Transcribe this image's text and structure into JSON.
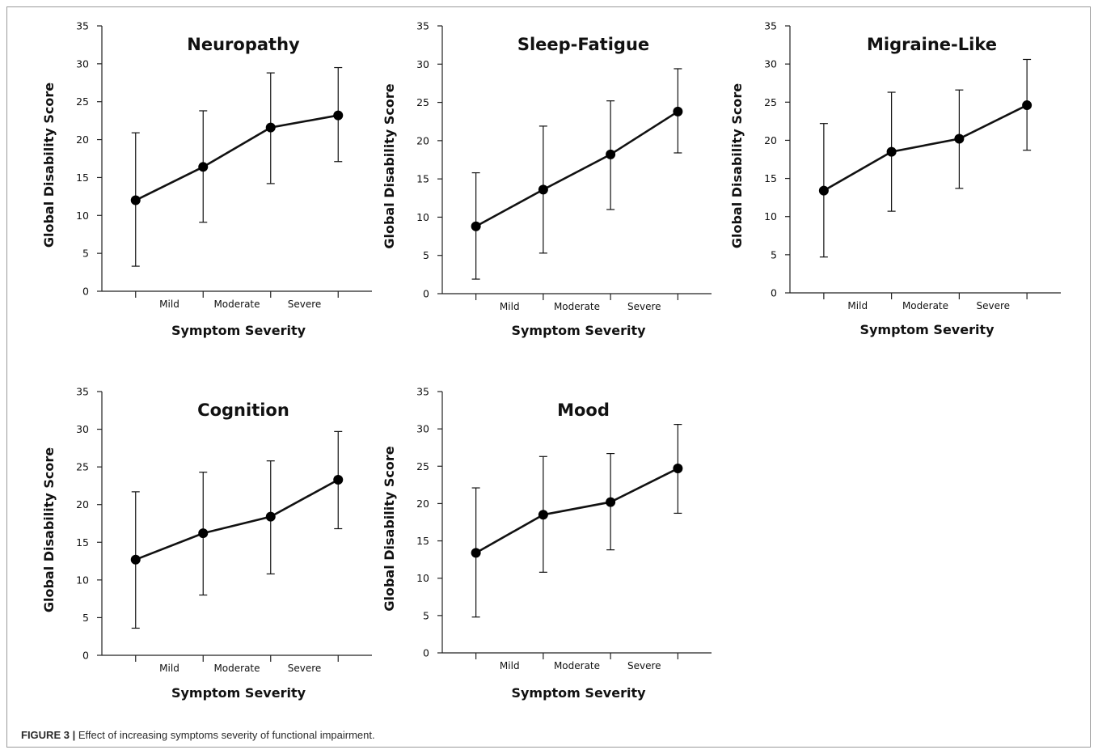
{
  "caption": {
    "label": "FIGURE 3 |",
    "text": " Effect of increasing symptoms severity of functional impairment."
  },
  "colors": {
    "line": "#111111",
    "marker": "#000000",
    "axis": "#222222"
  },
  "chart_data": [
    {
      "type": "line",
      "title": "Neuropathy",
      "xlabel": "Symptom Severity",
      "ylabel": "Global Disability Score",
      "categories": [
        "",
        "Mild",
        "Moderate",
        "Severe"
      ],
      "yticks": [
        "0",
        "5",
        "10",
        "15",
        "20",
        "25",
        "30",
        "35"
      ],
      "ylim": [
        0,
        35
      ],
      "series": [
        {
          "values": [
            12.0,
            16.4,
            21.6,
            23.2
          ],
          "error_low": [
            3.3,
            9.1,
            14.2,
            17.1
          ],
          "error_high": [
            20.9,
            23.8,
            28.8,
            29.5
          ]
        }
      ]
    },
    {
      "type": "line",
      "title": "Sleep-Fatigue",
      "xlabel": "Symptom Severity",
      "ylabel": "Global Disability Score",
      "categories": [
        "",
        "Mild",
        "Moderate",
        "Severe"
      ],
      "yticks": [
        "0",
        "5",
        "10",
        "15",
        "20",
        "25",
        "30",
        "35"
      ],
      "ylim": [
        0,
        35
      ],
      "series": [
        {
          "values": [
            8.8,
            13.6,
            18.2,
            23.8
          ],
          "error_low": [
            1.9,
            5.3,
            11.0,
            18.4
          ],
          "error_high": [
            15.8,
            21.9,
            25.2,
            29.4
          ]
        }
      ]
    },
    {
      "type": "line",
      "title": "Migraine-Like",
      "xlabel": "Symptom Severity",
      "ylabel": "Global Disability Score",
      "categories": [
        "",
        "Mild",
        "Moderate",
        "Severe"
      ],
      "yticks": [
        "0",
        "5",
        "10",
        "15",
        "20",
        "25",
        "30",
        "35"
      ],
      "ylim": [
        0,
        35
      ],
      "series": [
        {
          "values": [
            13.4,
            18.5,
            20.2,
            24.6
          ],
          "error_low": [
            4.7,
            10.7,
            13.7,
            18.7
          ],
          "error_high": [
            22.2,
            26.3,
            26.6,
            30.6
          ]
        }
      ]
    },
    {
      "type": "line",
      "title": "Cognition",
      "xlabel": "Symptom Severity",
      "ylabel": "Global Disability Score",
      "categories": [
        "",
        "Mild",
        "Moderate",
        "Severe"
      ],
      "yticks": [
        "0",
        "5",
        "10",
        "15",
        "20",
        "25",
        "30",
        "35"
      ],
      "ylim": [
        0,
        35
      ],
      "series": [
        {
          "values": [
            12.7,
            16.2,
            18.4,
            23.3
          ],
          "error_low": [
            3.6,
            8.0,
            10.8,
            16.8
          ],
          "error_high": [
            21.7,
            24.3,
            25.8,
            29.7
          ]
        }
      ]
    },
    {
      "type": "line",
      "title": "Mood",
      "xlabel": "Symptom Severity",
      "ylabel": "Global Disability Score",
      "categories": [
        "",
        "Mild",
        "Moderate",
        "Severe"
      ],
      "yticks": [
        "0",
        "5",
        "10",
        "15",
        "20",
        "25",
        "30",
        "35"
      ],
      "ylim": [
        0,
        35
      ],
      "series": [
        {
          "values": [
            13.4,
            18.5,
            20.2,
            24.7
          ],
          "error_low": [
            4.8,
            10.8,
            13.8,
            18.7
          ],
          "error_high": [
            22.1,
            26.3,
            26.7,
            30.6
          ]
        }
      ]
    }
  ]
}
